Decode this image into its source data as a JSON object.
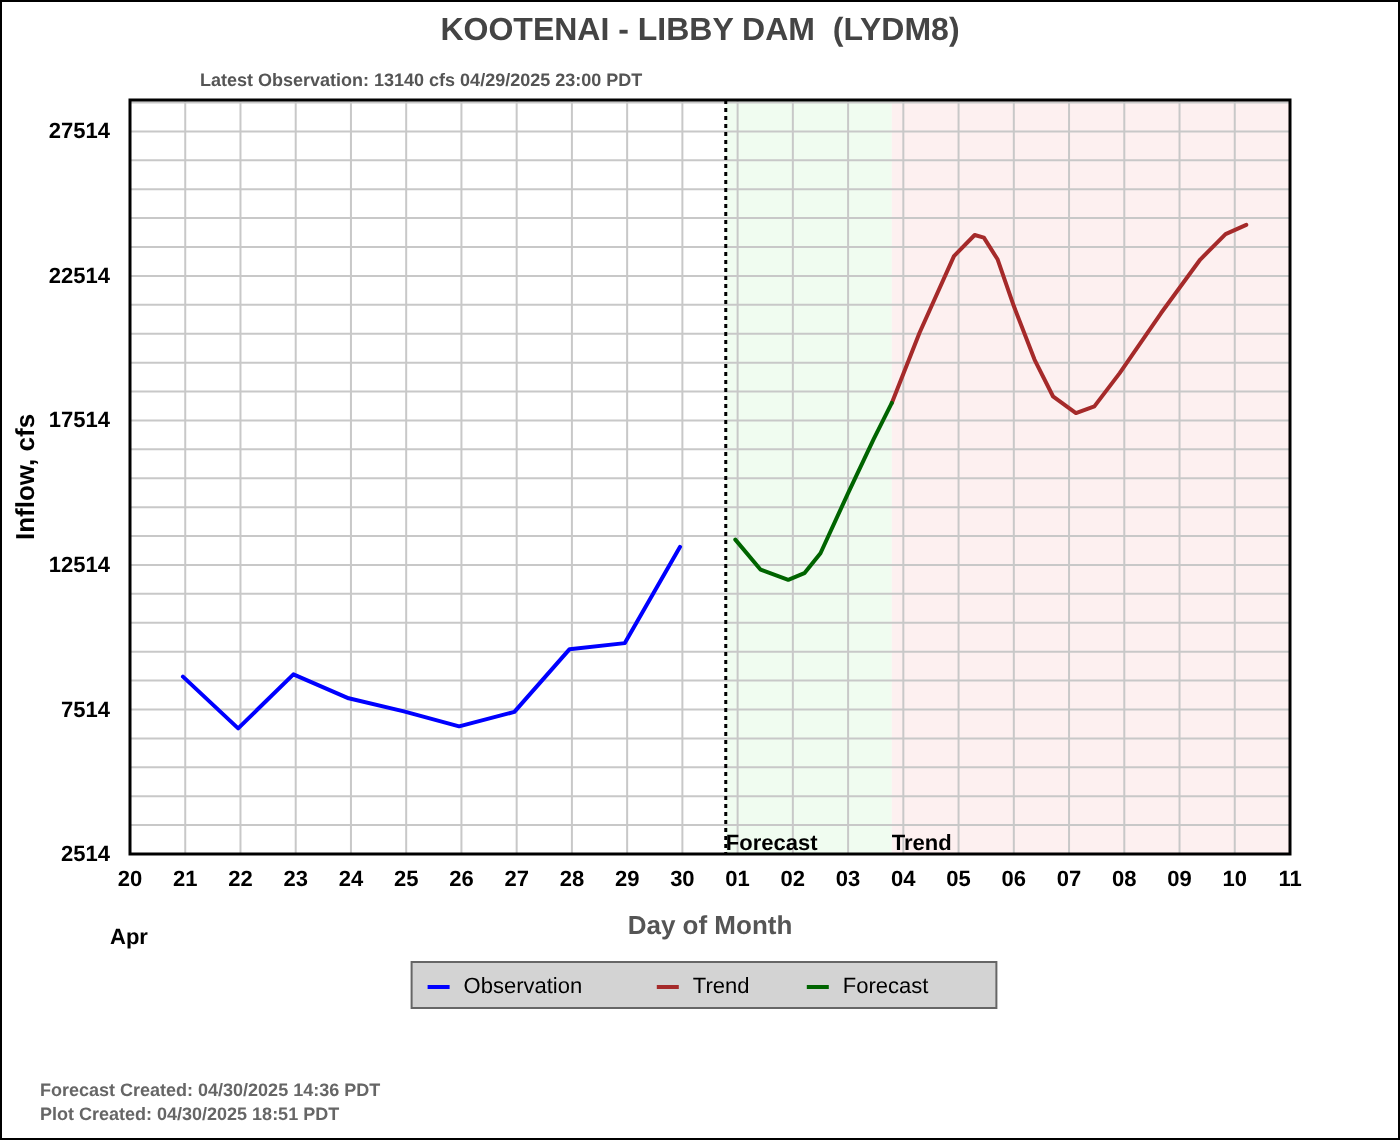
{
  "chart_data": {
    "type": "line",
    "title": "KOOTENAI - LIBBY DAM  (LYDM8)",
    "subtitle": "Latest Observation: 13140 cfs 04/29/2025 23:00 PDT",
    "xlabel": "Day of Month",
    "ylabel": "Inflow, cfs",
    "annotations": [
      "Apr",
      "Forecast Created: 04/30/2025 14:36 PDT",
      "Plot Created: 04/30/2025 18:51 PDT"
    ],
    "xlim": [
      "2025-04-20",
      "2025-05-11"
    ],
    "xticks": [
      {
        "value": "2025-04-20",
        "label": "20"
      },
      {
        "value": "2025-04-21",
        "label": "21"
      },
      {
        "value": "2025-04-22",
        "label": "22"
      },
      {
        "value": "2025-04-23",
        "label": "23"
      },
      {
        "value": "2025-04-24",
        "label": "24"
      },
      {
        "value": "2025-04-25",
        "label": "25"
      },
      {
        "value": "2025-04-26",
        "label": "26"
      },
      {
        "value": "2025-04-27",
        "label": "27"
      },
      {
        "value": "2025-04-28",
        "label": "28"
      },
      {
        "value": "2025-04-29",
        "label": "29"
      },
      {
        "value": "2025-04-30",
        "label": "30"
      },
      {
        "value": "2025-05-01",
        "label": "01"
      },
      {
        "value": "2025-05-02",
        "label": "02"
      },
      {
        "value": "2025-05-03",
        "label": "03"
      },
      {
        "value": "2025-05-04",
        "label": "04"
      },
      {
        "value": "2025-05-05",
        "label": "05"
      },
      {
        "value": "2025-05-06",
        "label": "06"
      },
      {
        "value": "2025-05-07",
        "label": "07"
      },
      {
        "value": "2025-05-08",
        "label": "08"
      },
      {
        "value": "2025-05-09",
        "label": "09"
      },
      {
        "value": "2025-05-10",
        "label": "10"
      },
      {
        "value": "2025-05-11",
        "label": "11"
      }
    ],
    "ylim": [
      2514,
      28600
    ],
    "yticks": [
      2514,
      {
        "value": 3514,
        "label": null
      },
      {
        "value": 4514,
        "label": null
      },
      {
        "value": 5514,
        "label": null
      },
      {
        "value": 6514,
        "label": null
      },
      7514,
      {
        "value": 8514,
        "label": null
      },
      {
        "value": 9514,
        "label": null
      },
      {
        "value": 10514,
        "label": null
      },
      {
        "value": 11514,
        "label": null
      },
      12514,
      {
        "value": 13514,
        "label": null
      },
      {
        "value": 14514,
        "label": null
      },
      {
        "value": 15514,
        "label": null
      },
      {
        "value": 16514,
        "label": null
      },
      17514,
      {
        "value": 18514,
        "label": null
      },
      {
        "value": 19514,
        "label": null
      },
      {
        "value": 20514,
        "label": null
      },
      {
        "value": 21514,
        "label": null
      },
      22514,
      {
        "value": 23514,
        "label": null
      },
      {
        "value": 24514,
        "label": null
      },
      {
        "value": 25514,
        "label": null
      },
      {
        "value": 26514,
        "label": null
      },
      27514,
      {
        "value": 28514,
        "label": null
      }
    ],
    "grid": true,
    "legend": "bottom",
    "marker": "none",
    "line_style": "solid",
    "bands": [
      {
        "axis": "x",
        "from": "2025-04-30T18:51",
        "to": "2025-05-03T19:00",
        "label": "Forecast",
        "color": "#f0fcf0"
      },
      {
        "axis": "x",
        "from": "2025-05-03T19:00",
        "to": "2025-05-11",
        "label": "Trend",
        "color": "#fdf0f0"
      }
    ],
    "ref_lines": [
      {
        "axis": "x",
        "value": "2025-04-30T18:51",
        "color": "#000000",
        "line_style": "dotted"
      }
    ],
    "series": [
      {
        "name": "Observation",
        "color": "#0000ff",
        "x": [
          "2025-04-20T23:00",
          "2025-04-21T23:00",
          "2025-04-22T23:00",
          "2025-04-23T23:00",
          "2025-04-24T23:00",
          "2025-04-25T23:00",
          "2025-04-26T23:00",
          "2025-04-27T23:00",
          "2025-04-28T23:00",
          "2025-04-29T23:00"
        ],
        "values": [
          8650,
          6860,
          8730,
          7900,
          7450,
          6930,
          7430,
          9600,
          9810,
          13140
        ]
      },
      {
        "name": "Trend",
        "color": "#a52a2a",
        "x": [
          "2025-05-03T19:00",
          "2025-05-04T07:00",
          "2025-05-04T22:00",
          "2025-05-05T07:00",
          "2025-05-05T11:00",
          "2025-05-05T17:00",
          "2025-05-06T00:00",
          "2025-05-06T09:00",
          "2025-05-06T17:00",
          "2025-05-07T03:00",
          "2025-05-07T11:00",
          "2025-05-07T22:00",
          "2025-05-08T16:00",
          "2025-05-09T09:00",
          "2025-05-09T20:00",
          "2025-05-10T05:00"
        ],
        "values": [
          18120,
          20540,
          23200,
          23930,
          23840,
          23080,
          21470,
          19620,
          18350,
          17770,
          18000,
          19150,
          21230,
          23080,
          23960,
          24280
        ]
      },
      {
        "name": "Forecast",
        "color": "#006400",
        "x": [
          "2025-04-30T23:00",
          "2025-05-01T10:00",
          "2025-05-01T22:00",
          "2025-05-02T05:00",
          "2025-05-02T12:00",
          "2025-05-03T00:00",
          "2025-05-03T11:00",
          "2025-05-03T19:00"
        ],
        "values": [
          13390,
          12350,
          12000,
          12230,
          12920,
          15000,
          16850,
          18120
        ]
      }
    ]
  }
}
